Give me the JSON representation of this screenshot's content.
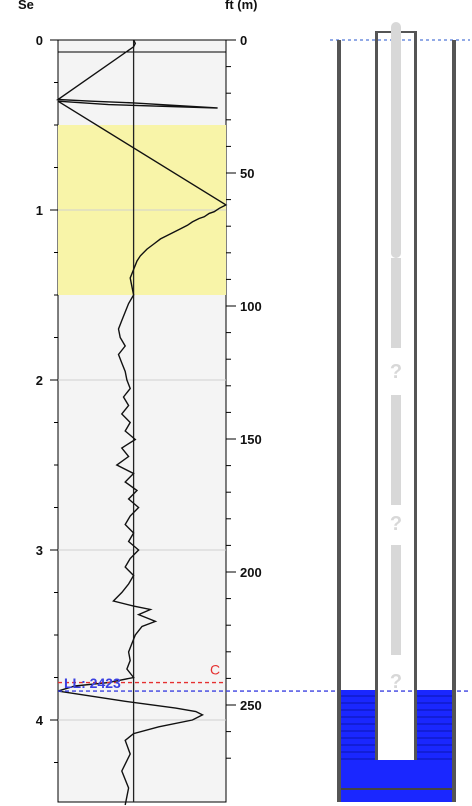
{
  "chart_data": {
    "type": "line",
    "left_axis": {
      "label": "Se",
      "ylim": [
        0,
        4.5
      ],
      "ticks": [
        0,
        1,
        2,
        3,
        4
      ],
      "tick_labels": [
        "0",
        "1",
        "2",
        "3",
        "4"
      ],
      "grid": true
    },
    "right_axis": {
      "label": "ft (m)",
      "ylim": [
        0,
        280
      ],
      "ticks": [
        0,
        50,
        100,
        150,
        200,
        250
      ],
      "tick_labels": [
        "0",
        "50",
        "100",
        "150",
        "200",
        "250"
      ]
    },
    "highlight_band": {
      "from": 0.5,
      "to": 1.5,
      "color": "#f8f4a8"
    },
    "reference_line_x": 0.45,
    "xlim": [
      0,
      1
    ],
    "log_trace": [
      [
        0.45,
        0.0
      ],
      [
        0.46,
        0.02
      ],
      [
        0.45,
        0.04
      ],
      [
        0.0,
        0.35
      ],
      [
        0.2,
        0.36
      ],
      [
        0.45,
        0.37
      ],
      [
        0.95,
        0.4
      ],
      [
        0.3,
        0.38
      ],
      [
        0.0,
        0.36
      ],
      [
        1.0,
        0.97
      ],
      [
        0.96,
        0.99
      ],
      [
        0.93,
        1.01
      ],
      [
        0.9,
        1.02
      ],
      [
        0.87,
        1.04
      ],
      [
        0.84,
        1.05
      ],
      [
        0.8,
        1.07
      ],
      [
        0.77,
        1.09
      ],
      [
        0.73,
        1.11
      ],
      [
        0.69,
        1.13
      ],
      [
        0.65,
        1.15
      ],
      [
        0.61,
        1.17
      ],
      [
        0.57,
        1.2
      ],
      [
        0.53,
        1.23
      ],
      [
        0.49,
        1.27
      ],
      [
        0.47,
        1.3
      ],
      [
        0.45,
        1.35
      ],
      [
        0.43,
        1.4
      ],
      [
        0.44,
        1.45
      ],
      [
        0.45,
        1.5
      ],
      [
        0.42,
        1.55
      ],
      [
        0.4,
        1.6
      ],
      [
        0.38,
        1.65
      ],
      [
        0.36,
        1.7
      ],
      [
        0.37,
        1.75
      ],
      [
        0.4,
        1.8
      ],
      [
        0.36,
        1.85
      ],
      [
        0.38,
        1.9
      ],
      [
        0.4,
        1.95
      ],
      [
        0.41,
        2.0
      ],
      [
        0.43,
        2.05
      ],
      [
        0.39,
        2.1
      ],
      [
        0.42,
        2.15
      ],
      [
        0.38,
        2.2
      ],
      [
        0.43,
        2.25
      ],
      [
        0.4,
        2.3
      ],
      [
        0.46,
        2.35
      ],
      [
        0.38,
        2.4
      ],
      [
        0.42,
        2.45
      ],
      [
        0.35,
        2.5
      ],
      [
        0.45,
        2.55
      ],
      [
        0.4,
        2.6
      ],
      [
        0.47,
        2.65
      ],
      [
        0.42,
        2.7
      ],
      [
        0.48,
        2.75
      ],
      [
        0.43,
        2.8
      ],
      [
        0.4,
        2.85
      ],
      [
        0.45,
        2.9
      ],
      [
        0.42,
        2.95
      ],
      [
        0.48,
        3.0
      ],
      [
        0.43,
        3.05
      ],
      [
        0.4,
        3.1
      ],
      [
        0.45,
        3.15
      ],
      [
        0.42,
        3.2
      ],
      [
        0.38,
        3.25
      ],
      [
        0.33,
        3.3
      ],
      [
        0.45,
        3.33
      ],
      [
        0.55,
        3.35
      ],
      [
        0.48,
        3.38
      ],
      [
        0.58,
        3.42
      ],
      [
        0.5,
        3.45
      ],
      [
        0.46,
        3.5
      ],
      [
        0.44,
        3.55
      ],
      [
        0.42,
        3.6
      ],
      [
        0.43,
        3.65
      ],
      [
        0.41,
        3.7
      ],
      [
        0.45,
        3.75
      ],
      [
        0.3,
        3.78
      ],
      [
        0.1,
        3.8
      ],
      [
        0.0,
        3.83
      ],
      [
        0.2,
        3.86
      ],
      [
        0.4,
        3.89
      ],
      [
        0.55,
        3.91
      ],
      [
        0.7,
        3.93
      ],
      [
        0.82,
        3.95
      ],
      [
        0.86,
        3.97
      ],
      [
        0.8,
        4.0
      ],
      [
        0.6,
        4.04
      ],
      [
        0.45,
        4.08
      ],
      [
        0.4,
        4.12
      ],
      [
        0.43,
        4.2
      ],
      [
        0.38,
        4.3
      ],
      [
        0.42,
        4.4
      ],
      [
        0.4,
        4.5
      ]
    ],
    "reference_lines": [
      {
        "value": 3.78,
        "color": "#e53030",
        "style": "dashed",
        "label": "C"
      },
      {
        "value": 3.83,
        "color": "#3b40e0",
        "style": "dashed",
        "label": "LL: 2423"
      }
    ]
  },
  "well_diagram": {
    "casing_color": "#555555",
    "fill_color": "#1a27ff",
    "marker_color": "#d8d8d8",
    "water_level_color": "#5078d8",
    "question_mark": "?"
  }
}
